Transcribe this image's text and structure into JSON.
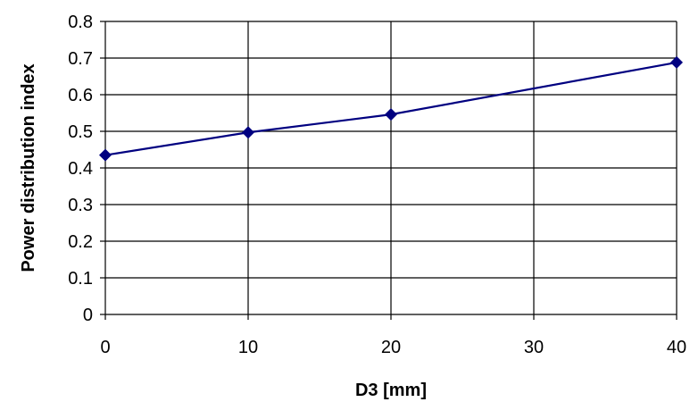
{
  "chart_data": {
    "type": "line",
    "title": "",
    "xlabel": "D3 [mm]",
    "ylabel": "Power distribution index",
    "xlim": [
      0,
      40
    ],
    "ylim": [
      0,
      0.8
    ],
    "x_ticks": [
      "0",
      "10",
      "20",
      "30",
      "40"
    ],
    "y_ticks": [
      "0",
      "0.1",
      "0.2",
      "0.3",
      "0.4",
      "0.5",
      "0.6",
      "0.7",
      "0.8"
    ],
    "grid": true,
    "legend": "none",
    "series": [
      {
        "color": "#000080",
        "marker": "diamond",
        "x": [
          0,
          10,
          20,
          40
        ],
        "y": [
          0.435,
          0.497,
          0.546,
          0.688
        ]
      }
    ]
  }
}
